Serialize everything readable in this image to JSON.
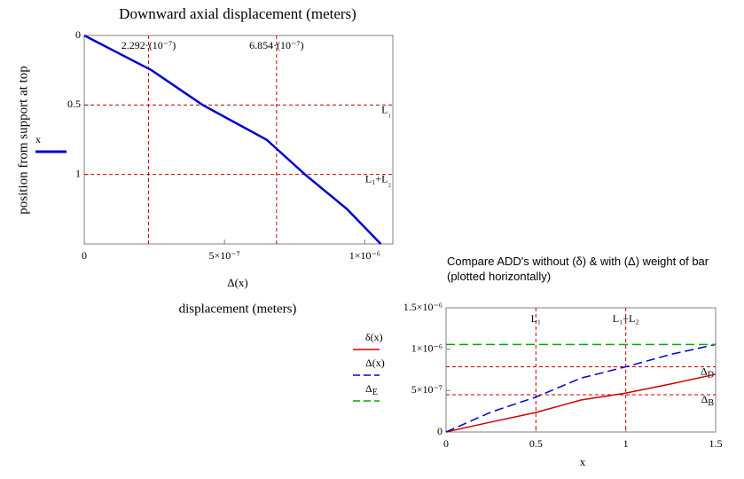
{
  "chart_data": [
    {
      "type": "line",
      "title": "Downward axial displacement (meters)",
      "ylabel": "position from support at top",
      "xlabel": "Δ(x)",
      "annotation": "displacement (meters)",
      "xlim": [
        0,
        1.1e-06
      ],
      "xticks": [
        0,
        {
          "value": 5e-07,
          "label": "5×10⁻⁷"
        },
        {
          "value": 1e-06,
          "label": "1×10⁻⁶"
        }
      ],
      "ylim": [
        0,
        1.5
      ],
      "yticks": [
        0,
        0.5,
        1
      ],
      "y_inverted": true,
      "series": [
        {
          "name": "x",
          "color": "#0000cc",
          "dash": false,
          "x": [
            0,
            2.4e-07,
            4.22e-07,
            6.5e-07,
            7.87e-07,
            9.37e-07,
            1.057e-06
          ],
          "values": [
            0,
            0.25,
            0.5,
            0.75,
            1,
            1.25,
            1.5
          ]
        }
      ],
      "marker_color": "#cc0000",
      "vlines": [
        {
          "value": 2.292e-07,
          "label": "2.292·(10⁻⁷)"
        },
        {
          "value": 6.854e-07,
          "label": "6.854·(10⁻⁷)"
        }
      ],
      "hlines": [
        {
          "value": 0.5,
          "label": "L₁"
        },
        {
          "value": 1,
          "label": "L₁+L₂"
        }
      ]
    },
    {
      "type": "line",
      "title": "Compare ADD's without (δ) & with (Δ) weight of bar (plotted horizontally)",
      "xlabel": "x",
      "xlim": [
        0,
        1.5
      ],
      "xticks": [
        0,
        0.5,
        1,
        1.5
      ],
      "ylim": [
        0,
        1.5e-06
      ],
      "yticks": [
        0,
        {
          "value": 5e-07,
          "label": "5×10⁻⁷"
        },
        {
          "value": 1e-06,
          "label": "1×10⁻⁶"
        },
        {
          "value": 1.5e-06,
          "label": "1.5×10⁻⁶"
        }
      ],
      "y_inverted": false,
      "series": [
        {
          "name": "δ(x)",
          "color": "#cc0000",
          "dash": false,
          "x": [
            0,
            0.25,
            0.5,
            0.75,
            1,
            1.25,
            1.5
          ],
          "values": [
            0,
            1.2e-07,
            2.36e-07,
            3.86e-07,
            4.7e-07,
            5.8e-07,
            6.97e-07
          ]
        },
        {
          "name": "Δ(x)",
          "color": "#0000cc",
          "dash": true,
          "x": [
            0,
            0.25,
            0.5,
            0.75,
            1,
            1.25,
            1.5
          ],
          "values": [
            0,
            2.4e-07,
            4.22e-07,
            6.5e-07,
            7.87e-07,
            9.37e-07,
            1.057e-06
          ]
        },
        {
          "name": "ΔE",
          "color": "#00aa00",
          "dash": true,
          "x": [
            0,
            1.5
          ],
          "values": [
            1.057e-06,
            1.057e-06
          ]
        }
      ],
      "marker_color": "#cc0000",
      "vlines": [
        {
          "value": 0.5,
          "label": "L₁"
        },
        {
          "value": 1,
          "label": "L₁+L₂"
        }
      ],
      "hlines": [
        {
          "value": 7.87e-07,
          "label": "ΔD"
        },
        {
          "value": 4.5e-07,
          "label": "ΔB"
        }
      ]
    }
  ]
}
